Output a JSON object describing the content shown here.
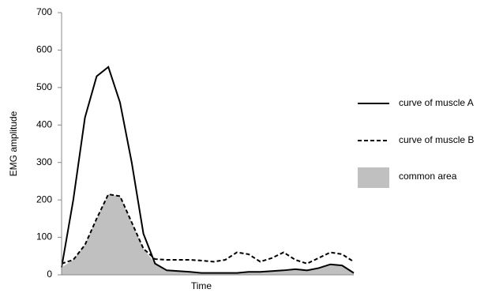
{
  "chart_data": {
    "type": "line",
    "x_label": "Time",
    "y_label": "EMG amplitude",
    "x": [
      0,
      4,
      8,
      12,
      16,
      20,
      24,
      28,
      32,
      36,
      40,
      44,
      48,
      52,
      56,
      60,
      64,
      68,
      72,
      76,
      80,
      84,
      88,
      92,
      96,
      100
    ],
    "xlim": [
      0,
      100
    ],
    "ylim": [
      0,
      700
    ],
    "yticks": [
      0,
      100,
      200,
      300,
      400,
      500,
      600,
      700
    ],
    "series": [
      {
        "name": "curve of muscle A",
        "color": "#000000",
        "dash": "solid",
        "values": [
          20,
          200,
          420,
          530,
          555,
          460,
          300,
          110,
          30,
          12,
          10,
          8,
          5,
          5,
          5,
          5,
          8,
          8,
          10,
          12,
          15,
          12,
          18,
          28,
          25,
          5
        ]
      },
      {
        "name": "curve of muscle B",
        "color": "#000000",
        "dash": "dashed",
        "values": [
          30,
          40,
          80,
          150,
          215,
          210,
          140,
          70,
          42,
          40,
          40,
          40,
          38,
          35,
          40,
          60,
          55,
          35,
          45,
          60,
          40,
          30,
          45,
          60,
          55,
          35
        ]
      }
    ],
    "common_area": {
      "name": "common area",
      "color": "#c0c0c0"
    }
  }
}
